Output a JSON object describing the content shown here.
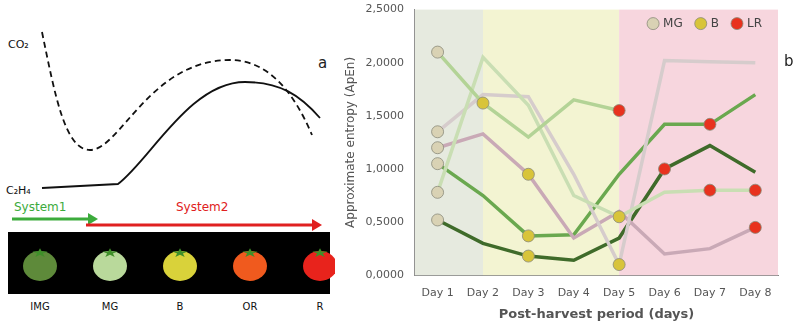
{
  "chart_data": {
    "type": "line",
    "panel_label": "b",
    "x_label": "Post-harvest period (days)",
    "y_label": "Approximate entropy (ApEn)",
    "categories": [
      "Day 1",
      "Day 2",
      "Day 3",
      "Day 4",
      "Day 5",
      "Day 6",
      "Day 7",
      "Day 8"
    ],
    "ylim": [
      0,
      2.5
    ],
    "yticks": [
      {
        "value": 0,
        "label": "0,0000"
      },
      {
        "value": 0.5,
        "label": "0,5000"
      },
      {
        "value": 1,
        "label": "1,0000"
      },
      {
        "value": 1.5,
        "label": "1,5000"
      },
      {
        "value": 2,
        "label": "2,0000"
      },
      {
        "value": 2.5,
        "label": "2,5000"
      }
    ],
    "grid": false,
    "legend": "top right",
    "stages": [
      {
        "name": "MG",
        "color": "#d9d2b4"
      },
      {
        "name": "B",
        "color": "#d8c43a"
      },
      {
        "name": "LR",
        "color": "#e8321e"
      }
    ],
    "phases": [
      {
        "from": "Day 1",
        "to": "Day 2",
        "color": "#e6eadf"
      },
      {
        "from": "Day 2",
        "to": "Day 5",
        "color": "#f3f4d2"
      },
      {
        "from": "Day 5",
        "to": "Day 8",
        "color": "#f7d6de"
      }
    ],
    "series": [
      {
        "color": "#b3d396",
        "values": [
          2.1,
          1.62,
          1.3,
          1.65,
          1.55,
          null,
          null,
          null
        ],
        "stages": [
          "MG",
          "B",
          null,
          null,
          "LR",
          null,
          null,
          null
        ]
      },
      {
        "color": "#c9deb3",
        "values": [
          0.78,
          2.05,
          1.6,
          0.75,
          0.55,
          0.78,
          0.8,
          0.8
        ],
        "stages": [
          "MG",
          null,
          null,
          null,
          "B",
          null,
          "LR",
          "LR"
        ]
      },
      {
        "color": "#d6cccc",
        "values": [
          1.35,
          1.7,
          1.68,
          0.95,
          0.1,
          2.02,
          2.01,
          2.0
        ],
        "stages": [
          "MG",
          null,
          null,
          null,
          "B",
          null,
          null,
          null
        ]
      },
      {
        "color": "#c9a9b6",
        "values": [
          1.2,
          1.33,
          0.95,
          0.35,
          0.6,
          0.2,
          0.25,
          0.45
        ],
        "stages": [
          "MG",
          null,
          "B",
          null,
          null,
          null,
          null,
          "LR"
        ]
      },
      {
        "color": "#6aa84f",
        "values": [
          1.05,
          0.75,
          0.37,
          0.38,
          0.95,
          1.42,
          1.42,
          1.7
        ],
        "stages": [
          "MG",
          null,
          "B",
          null,
          null,
          null,
          "LR",
          null
        ]
      },
      {
        "color": "#3f6b2a",
        "values": [
          0.52,
          0.3,
          0.18,
          0.14,
          0.35,
          1.0,
          1.22,
          0.97
        ],
        "stages": [
          "MG",
          null,
          "B",
          null,
          null,
          "LR",
          null,
          null
        ]
      }
    ]
  },
  "diagram": {
    "panel_label": "a",
    "curves": [
      {
        "label": "CO₂",
        "line_style": "dashed"
      },
      {
        "label": "C₂H₄",
        "line_style": "solid"
      }
    ],
    "systems": [
      {
        "label": "System1",
        "color": "#3cab3c"
      },
      {
        "label": "System2",
        "color": "#e02020"
      }
    ],
    "stages": [
      {
        "label": "IMG",
        "color": "#5e8a3a"
      },
      {
        "label": "MG",
        "color": "#b9d99b"
      },
      {
        "label": "B",
        "color": "#d9d23a"
      },
      {
        "label": "OR",
        "color": "#f05a1e"
      },
      {
        "label": "R",
        "color": "#e8231c"
      }
    ]
  }
}
